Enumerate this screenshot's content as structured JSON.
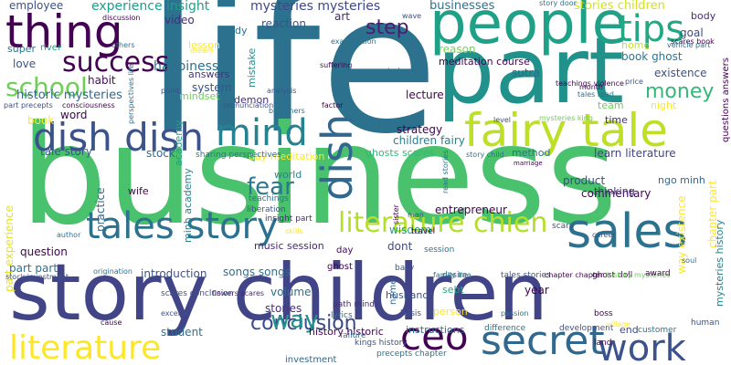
{
  "words": [
    {
      "text": "life",
      "color": "#2c728e"
    },
    {
      "text": "business",
      "color": "#4ac16d"
    },
    {
      "text": "story children",
      "color": "#414487"
    },
    {
      "text": "part",
      "color": "#21918c"
    },
    {
      "text": "people",
      "color": "#1fa187"
    },
    {
      "text": "thing",
      "color": "#440154"
    },
    {
      "text": "fairy tale",
      "color": "#bddf26"
    },
    {
      "text": "dish dish",
      "color": "#3b528b"
    },
    {
      "text": "tales story",
      "color": "#2c728e"
    },
    {
      "text": "literature chien",
      "color": "#b5de2b"
    },
    {
      "text": "sales",
      "color": "#2c728e"
    },
    {
      "text": "secret",
      "color": "#31688e"
    },
    {
      "text": "work",
      "color": "#3b528b"
    },
    {
      "text": "ceo",
      "color": "#440154"
    },
    {
      "text": "literature",
      "color": "#fde725"
    },
    {
      "text": "mind",
      "color": "#26828e"
    },
    {
      "text": "dish",
      "color": "#31688e"
    },
    {
      "text": "tips",
      "color": "#22a884"
    },
    {
      "text": "success",
      "color": "#440154"
    },
    {
      "text": "school",
      "color": "#6ece58"
    },
    {
      "text": "money",
      "color": "#35b779"
    },
    {
      "text": "conclusion",
      "color": "#3e4989"
    },
    {
      "text": "way",
      "color": "#21918c"
    },
    {
      "text": "fear",
      "color": "#2a788e"
    },
    {
      "text": "step",
      "color": "#481f70"
    },
    {
      "text": "happiness",
      "color": "#2c728e"
    },
    {
      "text": "historic mysteries",
      "color": "#31688e"
    },
    {
      "text": "mysteries mysteries",
      "color": "#3e4989"
    },
    {
      "text": "experience insight",
      "color": "#1f9e89"
    },
    {
      "text": "businesses",
      "color": "#2c728e"
    },
    {
      "text": "stories children",
      "color": "#d2e21b"
    },
    {
      "text": "employee",
      "color": "#3b528b"
    },
    {
      "text": "video",
      "color": "#472c7a"
    },
    {
      "text": "reaction",
      "color": "#3b528b"
    },
    {
      "text": "art",
      "color": "#482878"
    },
    {
      "text": "body",
      "color": "#472d7b"
    },
    {
      "text": "goal",
      "color": "#3e4989"
    },
    {
      "text": "home",
      "color": "#c8e020"
    },
    {
      "text": "book ghost",
      "color": "#2a788e"
    },
    {
      "text": "existence",
      "color": "#3b528b"
    },
    {
      "text": "night",
      "color": "#fde725"
    },
    {
      "text": "time",
      "color": "#472d7b"
    },
    {
      "text": "team",
      "color": "#6ece58"
    },
    {
      "text": "meditation course",
      "color": "#440154"
    },
    {
      "text": "reason",
      "color": "#7ad151"
    },
    {
      "text": "sutra",
      "color": "#31688e"
    },
    {
      "text": "lecture",
      "color": "#440154"
    },
    {
      "text": "study",
      "color": "#2c728e"
    },
    {
      "text": "answers",
      "color": "#46327e"
    },
    {
      "text": "lesson",
      "color": "#fde725"
    },
    {
      "text": "mistake",
      "color": "#228d8d"
    },
    {
      "text": "system",
      "color": "#3b528b"
    },
    {
      "text": "mindset",
      "color": "#6ece58"
    },
    {
      "text": "habit",
      "color": "#470e61"
    },
    {
      "text": "love",
      "color": "#3b528b"
    },
    {
      "text": "super",
      "color": "#2c728e"
    },
    {
      "text": "river",
      "color": "#1fa187"
    },
    {
      "text": "word",
      "color": "#440154"
    },
    {
      "text": "book",
      "color": "#fde725"
    },
    {
      "text": "tale story",
      "color": "#3b528b"
    },
    {
      "text": "strategy",
      "color": "#440154"
    },
    {
      "text": "children fairy",
      "color": "#26828e"
    },
    {
      "text": "method",
      "color": "#2c728e"
    },
    {
      "text": "ghosts scares",
      "color": "#35b779"
    },
    {
      "text": "learn literature",
      "color": "#414487"
    },
    {
      "text": "product",
      "color": "#3e4989"
    },
    {
      "text": "commentary",
      "color": "#440154"
    },
    {
      "text": "ngo minh",
      "color": "#31688e"
    },
    {
      "text": "thinking",
      "color": "#472c7a"
    },
    {
      "text": "entrepreneur",
      "color": "#440154"
    },
    {
      "text": "dont",
      "color": "#3e4989"
    },
    {
      "text": "wisdom",
      "color": "#1f9e89"
    },
    {
      "text": "stock",
      "color": "#31688e"
    },
    {
      "text": "academy",
      "color": "#1fa187"
    },
    {
      "text": "demon",
      "color": "#472d7b"
    },
    {
      "text": "world",
      "color": "#26828e"
    },
    {
      "text": "wife",
      "color": "#440154"
    },
    {
      "text": "practice",
      "color": "#31688e"
    },
    {
      "text": "minh academy",
      "color": "#26828e"
    },
    {
      "text": "question",
      "color": "#440154"
    },
    {
      "text": "part part",
      "color": "#2c728e"
    },
    {
      "text": "introduction",
      "color": "#3b528b"
    },
    {
      "text": "songs songs",
      "color": "#2c728e"
    },
    {
      "text": "music session",
      "color": "#482878"
    },
    {
      "text": "volume",
      "color": "#2c728e"
    },
    {
      "text": "stories",
      "color": "#46327e"
    },
    {
      "text": "student",
      "color": "#2c728e"
    },
    {
      "text": "history historic",
      "color": "#440154"
    },
    {
      "text": "husband",
      "color": "#3b528b"
    },
    {
      "text": "instructions",
      "color": "#31688e"
    },
    {
      "text": "person",
      "color": "#fde725"
    },
    {
      "text": "end",
      "color": "#3e4989"
    },
    {
      "text": "year",
      "color": "#440154"
    },
    {
      "text": "sebt",
      "color": "#22a884"
    },
    {
      "text": "part experience",
      "color": "#e5e419"
    },
    {
      "text": "chapter part",
      "color": "#fde725"
    },
    {
      "text": "way existence",
      "color": "#fde725"
    },
    {
      "text": "mysteries history",
      "color": "#26828e"
    },
    {
      "text": "questions answers",
      "color": "#440154"
    },
    {
      "text": "investment",
      "color": "#31688e"
    },
    {
      "text": "kings history",
      "color": "#3b528b"
    },
    {
      "text": "precepts chapter",
      "color": "#2c728e"
    },
    {
      "text": "name",
      "color": "#31688e"
    },
    {
      "text": "ghost",
      "color": "#440154"
    },
    {
      "text": "day",
      "color": "#440154"
    },
    {
      "text": "basv",
      "color": "#3b528b"
    },
    {
      "text": "desire",
      "color": "#31688e"
    },
    {
      "text": "path mind",
      "color": "#472d7b"
    },
    {
      "text": "lyrics",
      "color": "#2c728e"
    },
    {
      "text": "failure",
      "color": "#2c728e"
    },
    {
      "text": "basis",
      "color": "#3b528b"
    },
    {
      "text": "difference",
      "color": "#2c728e"
    },
    {
      "text": "development",
      "color": "#3b528b"
    },
    {
      "text": "boss",
      "color": "#440154"
    },
    {
      "text": "customer",
      "color": "#2c728e"
    },
    {
      "text": "human",
      "color": "#3b528b"
    },
    {
      "text": "land",
      "color": "#440154"
    },
    {
      "text": "day meditation",
      "color": "#fde725"
    },
    {
      "text": "sharing perspectives",
      "color": "#2c728e"
    },
    {
      "text": "scares conclusion",
      "color": "#3b528b"
    },
    {
      "text": "flowers scares",
      "color": "#482878"
    },
    {
      "text": "teachings",
      "color": "#2c728e"
    },
    {
      "text": "liberation",
      "color": "#3b528b"
    },
    {
      "text": "insight part",
      "color": "#482878"
    },
    {
      "text": "skills",
      "color": "#fde725"
    },
    {
      "text": "scary",
      "color": "#3b528b"
    },
    {
      "text": "travel",
      "color": "#440154"
    },
    {
      "text": "session",
      "color": "#2c728e"
    },
    {
      "text": "ghost doll",
      "color": "#440154"
    },
    {
      "text": "history mysteries",
      "color": "#6ece58"
    },
    {
      "text": "career",
      "color": "#3b528b"
    },
    {
      "text": "award",
      "color": "#440154"
    },
    {
      "text": "soul",
      "color": "#2c728e"
    },
    {
      "text": "tales stories",
      "color": "#3b528b"
    },
    {
      "text": "chapter chapter",
      "color": "#440154"
    },
    {
      "text": "family line",
      "color": "#2c728e"
    },
    {
      "text": "examination",
      "color": "#2c728e"
    },
    {
      "text": "suffering",
      "color": "#440154"
    },
    {
      "text": "startup",
      "color": "#2c728e"
    },
    {
      "text": "analysis",
      "color": "#3b528b"
    },
    {
      "text": "factor",
      "color": "#440154"
    },
    {
      "text": "beginners",
      "color": "#2c728e"
    },
    {
      "text": "pronunciation",
      "color": "#3b528b"
    },
    {
      "text": "discussion",
      "color": "#440154"
    },
    {
      "text": "others",
      "color": "#2c728e"
    },
    {
      "text": "dream",
      "color": "#fde725"
    },
    {
      "text": "point",
      "color": "#3b528b"
    },
    {
      "text": "scares book",
      "color": "#440154"
    },
    {
      "text": "vehicle part",
      "color": "#2c728e"
    },
    {
      "text": "price",
      "color": "#3b528b"
    },
    {
      "text": "month",
      "color": "#440154"
    },
    {
      "text": "tales read",
      "color": "#2c728e"
    },
    {
      "text": "teachings violence",
      "color": "#440154"
    },
    {
      "text": "part precepts",
      "color": "#3b528b"
    },
    {
      "text": "consciousness",
      "color": "#440154"
    },
    {
      "text": "perspectives life",
      "color": "#2c728e"
    },
    {
      "text": "author",
      "color": "#2c728e"
    },
    {
      "text": "stock investment",
      "color": "#3b528b"
    },
    {
      "text": "origination",
      "color": "#2c728e"
    },
    {
      "text": "excerpt",
      "color": "#3b528b"
    },
    {
      "text": "cause",
      "color": "#440154"
    },
    {
      "text": "passion",
      "color": "#2c728e"
    },
    {
      "text": "village",
      "color": "#fde725"
    },
    {
      "text": "mysteries king",
      "color": "#6ece58"
    },
    {
      "text": "level",
      "color": "#3b528b"
    },
    {
      "text": "story child",
      "color": "#2c728e"
    },
    {
      "text": "marriage",
      "color": "#440154"
    },
    {
      "text": "read stories",
      "color": "#2c728e"
    },
    {
      "text": "man",
      "color": "#3b528b"
    },
    {
      "text": "sister",
      "color": "#440154"
    },
    {
      "text": "story door",
      "color": "#2c728e"
    },
    {
      "text": "wave",
      "color": "#3b528b"
    }
  ]
}
